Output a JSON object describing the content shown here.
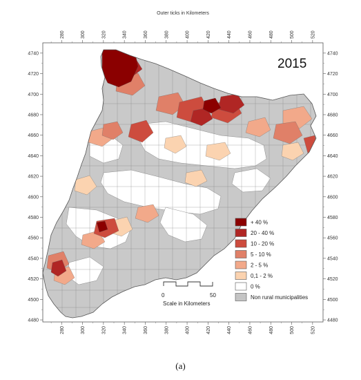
{
  "header": {
    "title": "Outer ticks in Kilometers"
  },
  "map": {
    "year": "2015",
    "x_ticks": [
      280,
      300,
      320,
      340,
      360,
      380,
      400,
      420,
      440,
      460,
      480,
      500,
      520
    ],
    "y_ticks": [
      4740,
      4720,
      4700,
      4680,
      4660,
      4640,
      4620,
      4600,
      4580,
      4560,
      4540,
      4520,
      4500,
      4480
    ],
    "x_range": [
      262,
      530
    ],
    "y_range": [
      4478,
      4750
    ]
  },
  "legend": {
    "items": [
      {
        "label": "+ 40 %",
        "color": "#8b0000"
      },
      {
        "label": "20 - 40 %",
        "color": "#b02624"
      },
      {
        "label": "10 - 20 %",
        "color": "#cd4c3e"
      },
      {
        "label": "5 - 10 %",
        "color": "#e08068"
      },
      {
        "label": "2 - 5 %",
        "color": "#f2a98a"
      },
      {
        "label": "0,1 - 2 %",
        "color": "#fbd3b0"
      },
      {
        "label": "0 %",
        "color": "#ffffff"
      },
      {
        "label": "Non rural municipalities",
        "color": "#c4c4c4"
      }
    ]
  },
  "scale_bar": {
    "start": "0",
    "end": "50",
    "label": "Scale in Kilometers"
  },
  "caption": "(a)"
}
